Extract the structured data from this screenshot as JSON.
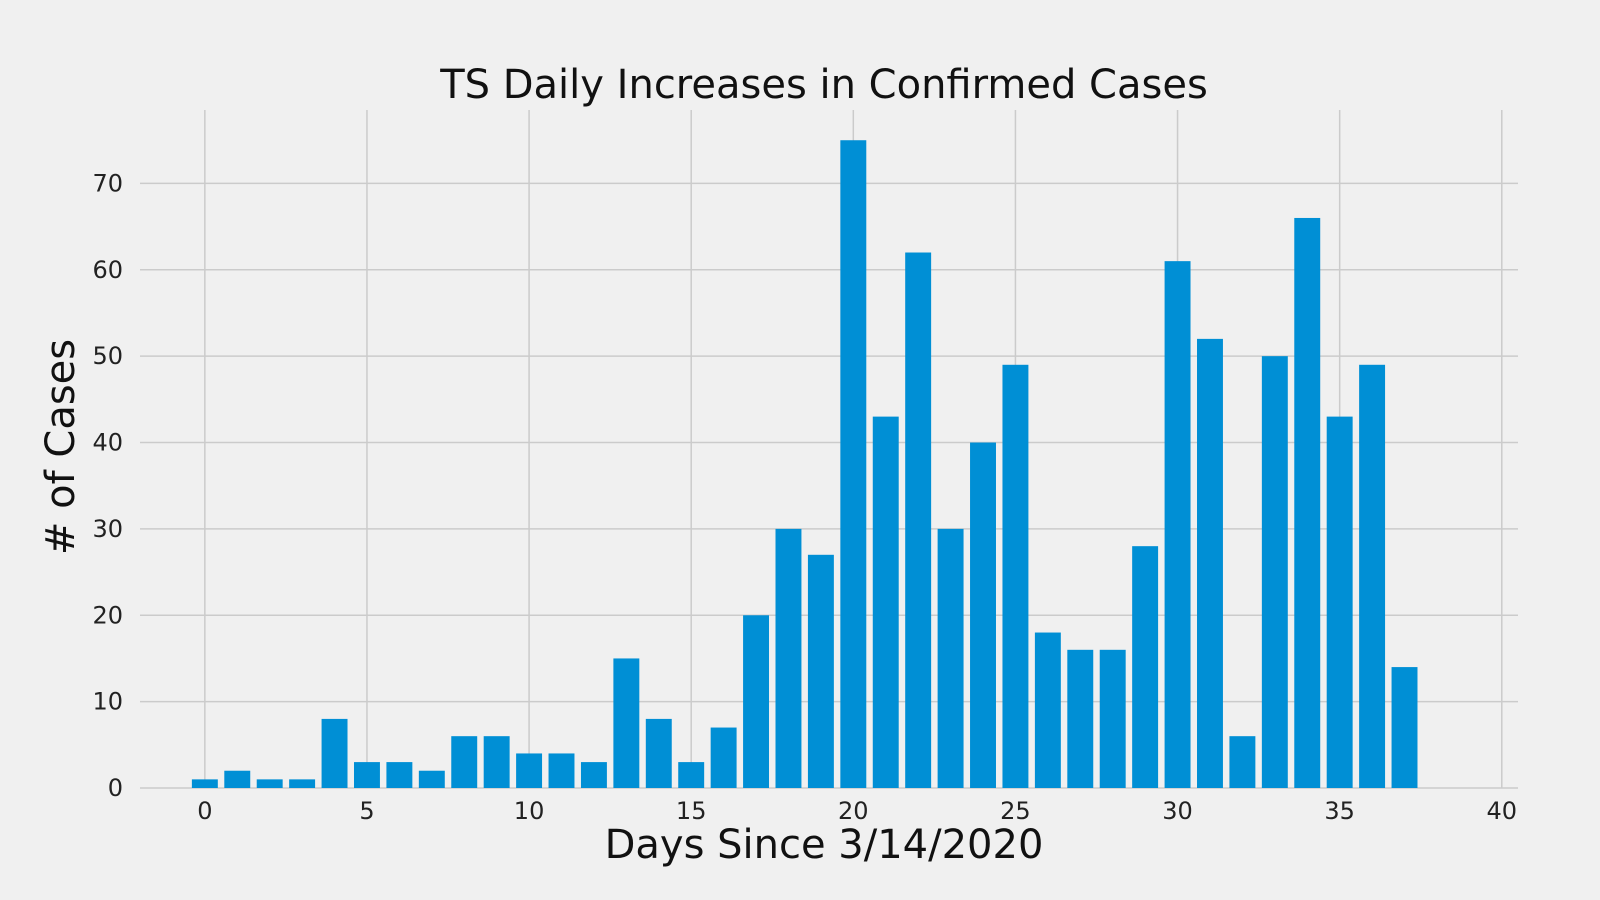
{
  "chart_data": {
    "type": "bar",
    "title": "TS Daily Increases in Confirmed Cases",
    "xlabel": "Days Since 3/14/2020",
    "ylabel": "# of Cases",
    "x": [
      0,
      1,
      2,
      3,
      4,
      5,
      6,
      7,
      8,
      9,
      10,
      11,
      12,
      13,
      14,
      15,
      16,
      17,
      18,
      19,
      20,
      21,
      22,
      23,
      24,
      25,
      26,
      27,
      28,
      29,
      30,
      31,
      32,
      33,
      34,
      35,
      36,
      37
    ],
    "values": [
      1,
      2,
      1,
      1,
      8,
      3,
      3,
      2,
      6,
      6,
      4,
      4,
      3,
      15,
      8,
      3,
      7,
      20,
      30,
      27,
      75,
      43,
      62,
      30,
      40,
      49,
      18,
      16,
      16,
      28,
      61,
      52,
      6,
      50,
      66,
      43,
      49,
      14
    ],
    "xlim": [
      -2,
      40.5
    ],
    "ylim": [
      0,
      78.5
    ],
    "xticks": [
      "0",
      "5",
      "10",
      "15",
      "20",
      "25",
      "30",
      "35",
      "40"
    ],
    "yticks": [
      "0",
      "10",
      "20",
      "30",
      "40",
      "50",
      "60",
      "70"
    ],
    "grid": true,
    "bar_color": "#008fd5",
    "background_color": "#f0f0f0"
  }
}
